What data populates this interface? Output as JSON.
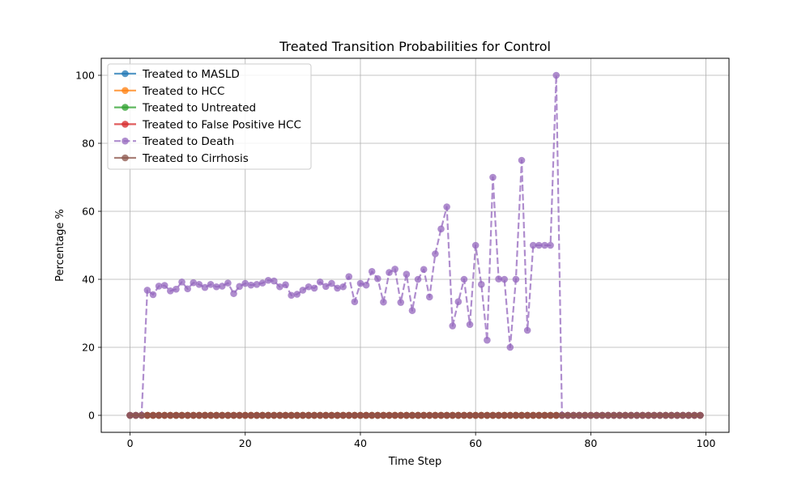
{
  "chart_data": {
    "type": "line",
    "title": "Treated Transition Probabilities for Control",
    "xlabel": "Time Step",
    "ylabel": "Percentage %",
    "xlim": [
      -5,
      104
    ],
    "ylim": [
      -5,
      105
    ],
    "xticks": [
      0,
      20,
      40,
      60,
      80,
      100
    ],
    "yticks": [
      0,
      20,
      40,
      60,
      80,
      100
    ],
    "grid": true,
    "legend_position": "upper-left",
    "x": [
      0,
      1,
      2,
      3,
      4,
      5,
      6,
      7,
      8,
      9,
      10,
      11,
      12,
      13,
      14,
      15,
      16,
      17,
      18,
      19,
      20,
      21,
      22,
      23,
      24,
      25,
      26,
      27,
      28,
      29,
      30,
      31,
      32,
      33,
      34,
      35,
      36,
      37,
      38,
      39,
      40,
      41,
      42,
      43,
      44,
      45,
      46,
      47,
      48,
      49,
      50,
      51,
      52,
      53,
      54,
      55,
      56,
      57,
      58,
      59,
      60,
      61,
      62,
      63,
      64,
      65,
      66,
      67,
      68,
      69,
      70,
      71,
      72,
      73,
      74,
      75,
      76,
      77,
      78,
      79,
      80,
      81,
      82,
      83,
      84,
      85,
      86,
      87,
      88,
      89,
      90,
      91,
      92,
      93,
      94,
      95,
      96,
      97,
      98,
      99
    ],
    "series": [
      {
        "name": "Treated to MASLD",
        "color": "#1f77b4",
        "style": "solid",
        "values": [
          0,
          0,
          0,
          0,
          0,
          0,
          0,
          0,
          0,
          0,
          0,
          0,
          0,
          0,
          0,
          0,
          0,
          0,
          0,
          0,
          0,
          0,
          0,
          0,
          0,
          0,
          0,
          0,
          0,
          0,
          0,
          0,
          0,
          0,
          0,
          0,
          0,
          0,
          0,
          0,
          0,
          0,
          0,
          0,
          0,
          0,
          0,
          0,
          0,
          0,
          0,
          0,
          0,
          0,
          0,
          0,
          0,
          0,
          0,
          0,
          0,
          0,
          0,
          0,
          0,
          0,
          0,
          0,
          0,
          0,
          0,
          0,
          0,
          0,
          0,
          0,
          0,
          0,
          0,
          0,
          0,
          0,
          0,
          0,
          0,
          0,
          0,
          0,
          0,
          0,
          0,
          0,
          0,
          0,
          0,
          0,
          0,
          0,
          0,
          0
        ]
      },
      {
        "name": "Treated to HCC",
        "color": "#ff7f0e",
        "style": "solid",
        "values": [
          0,
          0,
          0,
          0,
          0,
          0,
          0,
          0,
          0,
          0,
          0,
          0,
          0,
          0,
          0,
          0,
          0,
          0,
          0,
          0,
          0,
          0,
          0,
          0,
          0,
          0,
          0,
          0,
          0,
          0,
          0,
          0,
          0,
          0,
          0,
          0,
          0,
          0,
          0,
          0,
          0,
          0,
          0,
          0,
          0,
          0,
          0,
          0,
          0,
          0,
          0,
          0,
          0,
          0,
          0,
          0,
          0,
          0,
          0,
          0,
          0,
          0,
          0,
          0,
          0,
          0,
          0,
          0,
          0,
          0,
          0,
          0,
          0,
          0,
          0,
          0,
          0,
          0,
          0,
          0,
          0,
          0,
          0,
          0,
          0,
          0,
          0,
          0,
          0,
          0,
          0,
          0,
          0,
          0,
          0,
          0,
          0,
          0,
          0,
          0
        ]
      },
      {
        "name": "Treated to Untreated",
        "color": "#2ca02c",
        "style": "solid",
        "values": [
          0,
          0,
          0,
          0,
          0,
          0,
          0,
          0,
          0,
          0,
          0,
          0,
          0,
          0,
          0,
          0,
          0,
          0,
          0,
          0,
          0,
          0,
          0,
          0,
          0,
          0,
          0,
          0,
          0,
          0,
          0,
          0,
          0,
          0,
          0,
          0,
          0,
          0,
          0,
          0,
          0,
          0,
          0,
          0,
          0,
          0,
          0,
          0,
          0,
          0,
          0,
          0,
          0,
          0,
          0,
          0,
          0,
          0,
          0,
          0,
          0,
          0,
          0,
          0,
          0,
          0,
          0,
          0,
          0,
          0,
          0,
          0,
          0,
          0,
          0,
          0,
          0,
          0,
          0,
          0,
          0,
          0,
          0,
          0,
          0,
          0,
          0,
          0,
          0,
          0,
          0,
          0,
          0,
          0,
          0,
          0,
          0,
          0,
          0,
          0
        ]
      },
      {
        "name": "Treated to False Positive HCC",
        "color": "#d62728",
        "style": "solid",
        "values": [
          0,
          0,
          0,
          0,
          0,
          0,
          0,
          0,
          0,
          0,
          0,
          0,
          0,
          0,
          0,
          0,
          0,
          0,
          0,
          0,
          0,
          0,
          0,
          0,
          0,
          0,
          0,
          0,
          0,
          0,
          0,
          0,
          0,
          0,
          0,
          0,
          0,
          0,
          0,
          0,
          0,
          0,
          0,
          0,
          0,
          0,
          0,
          0,
          0,
          0,
          0,
          0,
          0,
          0,
          0,
          0,
          0,
          0,
          0,
          0,
          0,
          0,
          0,
          0,
          0,
          0,
          0,
          0,
          0,
          0,
          0,
          0,
          0,
          0,
          0,
          0,
          0,
          0,
          0,
          0,
          0,
          0,
          0,
          0,
          0,
          0,
          0,
          0,
          0,
          0,
          0,
          0,
          0,
          0,
          0,
          0,
          0,
          0,
          0,
          0
        ]
      },
      {
        "name": "Treated to Death",
        "color": "#9467bd",
        "style": "dashed",
        "values": [
          0,
          0,
          0,
          36.8,
          35.5,
          38,
          38.2,
          36.6,
          37.1,
          39.2,
          37.2,
          39,
          38.5,
          37.6,
          38.5,
          37.8,
          38,
          38.9,
          35.8,
          37.9,
          38.8,
          38.3,
          38.5,
          38.9,
          39.7,
          39.5,
          37.8,
          38.4,
          35.3,
          35.6,
          36.8,
          37.8,
          37.4,
          39.2,
          37.9,
          38.8,
          37.4,
          37.8,
          40.8,
          33.4,
          38.8,
          38.3,
          42.3,
          40.2,
          33.3,
          42,
          43,
          33.2,
          41.5,
          30.8,
          40,
          42.9,
          34.8,
          47.5,
          54.8,
          61.3,
          26.3,
          33.4,
          40,
          26.7,
          50,
          38.5,
          22.1,
          70,
          40.1,
          40,
          20,
          40,
          75,
          25,
          50,
          50,
          50,
          50,
          100,
          0,
          0,
          0,
          0,
          0,
          0,
          0,
          0,
          0,
          0,
          0,
          0,
          0,
          0,
          0,
          0,
          0,
          0,
          0,
          0,
          0,
          0,
          0,
          0,
          0
        ]
      },
      {
        "name": "Treated to Cirrhosis",
        "color": "#8c564b",
        "style": "solid",
        "values": [
          0,
          0,
          0,
          0,
          0,
          0,
          0,
          0,
          0,
          0,
          0,
          0,
          0,
          0,
          0,
          0,
          0,
          0,
          0,
          0,
          0,
          0,
          0,
          0,
          0,
          0,
          0,
          0,
          0,
          0,
          0,
          0,
          0,
          0,
          0,
          0,
          0,
          0,
          0,
          0,
          0,
          0,
          0,
          0,
          0,
          0,
          0,
          0,
          0,
          0,
          0,
          0,
          0,
          0,
          0,
          0,
          0,
          0,
          0,
          0,
          0,
          0,
          0,
          0,
          0,
          0,
          0,
          0,
          0,
          0,
          0,
          0,
          0,
          0,
          0,
          0,
          0,
          0,
          0,
          0,
          0,
          0,
          0,
          0,
          0,
          0,
          0,
          0,
          0,
          0,
          0,
          0,
          0,
          0,
          0,
          0,
          0,
          0,
          0,
          0
        ]
      }
    ]
  }
}
